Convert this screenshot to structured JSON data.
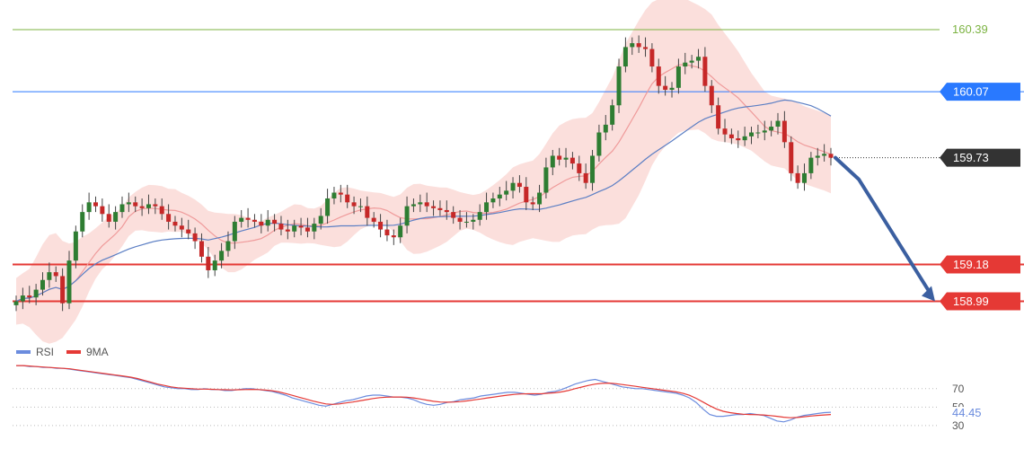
{
  "chart_data": [
    {
      "type": "candlestick",
      "y_range": [
        158.9,
        160.45
      ],
      "levels": [
        {
          "value": 160.39,
          "label": "160.39",
          "style": "text-only",
          "color": "#7cb342"
        },
        {
          "value": 160.07,
          "label": "160.07",
          "style": "tag",
          "color": "#2979ff"
        },
        {
          "value": 159.73,
          "label": "159.73",
          "style": "tag-dark",
          "color": "#333333"
        },
        {
          "value": 159.18,
          "label": "159.18",
          "style": "tag",
          "color": "#e53935"
        },
        {
          "value": 158.99,
          "label": "158.99",
          "style": "tag",
          "color": "#e53935"
        }
      ],
      "closes": [
        158.99,
        159.02,
        159.01,
        159.05,
        159.1,
        159.14,
        159.12,
        158.98,
        159.2,
        159.35,
        159.45,
        159.5,
        159.48,
        159.44,
        159.4,
        159.45,
        159.49,
        159.5,
        159.48,
        159.47,
        159.49,
        159.48,
        159.44,
        159.4,
        159.38,
        159.36,
        159.34,
        159.3,
        159.22,
        159.15,
        159.2,
        159.25,
        159.3,
        159.4,
        159.42,
        159.41,
        159.4,
        159.38,
        159.41,
        159.39,
        159.36,
        159.35,
        159.38,
        159.37,
        159.35,
        159.39,
        159.43,
        159.52,
        159.55,
        159.54,
        159.5,
        159.48,
        159.48,
        159.42,
        159.4,
        159.36,
        159.33,
        159.32,
        159.38,
        159.48,
        159.49,
        159.5,
        159.48,
        159.47,
        159.46,
        159.45,
        159.42,
        159.4,
        159.4,
        159.41,
        159.45,
        159.5,
        159.52,
        159.54,
        159.56,
        159.6,
        159.58,
        159.5,
        159.49,
        159.55,
        159.68,
        159.74,
        159.72,
        159.73,
        159.7,
        159.65,
        159.6,
        159.74,
        159.86,
        159.9,
        160.0,
        160.2,
        160.3,
        160.32,
        160.3,
        160.29,
        160.2,
        160.1,
        160.08,
        160.09,
        160.2,
        160.22,
        160.23,
        160.25,
        160.1,
        160.0,
        159.88,
        159.85,
        159.83,
        159.82,
        159.84,
        159.86,
        159.86,
        159.87,
        159.89,
        159.92,
        159.81,
        159.65,
        159.6,
        159.65,
        159.73,
        159.74,
        159.75,
        159.73
      ],
      "candle_x_range": [
        18,
        925
      ],
      "bollinger_half_width": [
        0.12,
        0.13,
        0.15,
        0.2,
        0.25,
        0.28,
        0.28,
        0.25,
        0.22,
        0.2,
        0.18,
        0.15,
        0.13,
        0.12,
        0.12,
        0.11,
        0.1,
        0.1,
        0.1,
        0.11,
        0.12,
        0.12,
        0.12,
        0.11,
        0.11,
        0.1,
        0.1,
        0.1,
        0.1,
        0.1,
        0.12,
        0.14,
        0.15,
        0.15,
        0.14,
        0.12,
        0.1,
        0.09,
        0.09,
        0.08,
        0.08,
        0.09,
        0.1,
        0.1,
        0.09,
        0.09,
        0.1,
        0.12,
        0.14,
        0.15,
        0.14,
        0.12,
        0.1,
        0.09,
        0.08,
        0.08,
        0.08,
        0.09,
        0.12,
        0.16,
        0.18,
        0.18,
        0.17,
        0.16,
        0.15,
        0.14,
        0.12,
        0.1,
        0.09,
        0.09,
        0.1,
        0.12,
        0.14,
        0.16,
        0.18,
        0.2,
        0.2,
        0.2,
        0.2,
        0.22,
        0.25,
        0.28,
        0.3,
        0.3,
        0.3,
        0.3,
        0.3,
        0.3,
        0.32,
        0.35,
        0.38,
        0.42,
        0.45,
        0.45,
        0.45,
        0.44,
        0.42,
        0.4,
        0.38,
        0.36,
        0.35,
        0.34,
        0.33,
        0.32,
        0.32,
        0.32,
        0.3,
        0.28,
        0.26,
        0.24,
        0.22,
        0.2,
        0.19,
        0.18,
        0.18,
        0.18,
        0.18,
        0.19,
        0.2,
        0.2,
        0.2,
        0.2,
        0.2,
        0.2
      ],
      "arrow": {
        "from_value": 159.73,
        "to_value": 158.99,
        "color": "#3b5fa0"
      }
    },
    {
      "type": "line",
      "legend": [
        {
          "name": "RSI",
          "color": "#6b8cde"
        },
        {
          "name": "9MA",
          "color": "#e53935"
        }
      ],
      "y_ticks": [
        {
          "value": 70,
          "label": "70"
        },
        {
          "value": 50,
          "label": "50"
        },
        {
          "value": 30,
          "label": "30"
        }
      ],
      "last_value_label": "44.45",
      "y_range": [
        26,
        100
      ],
      "rsi": [
        95,
        95,
        94,
        94,
        93,
        93,
        92,
        92,
        91,
        90,
        89,
        88,
        87,
        86,
        85,
        84,
        83,
        82,
        80,
        78,
        76,
        74,
        72,
        71,
        70,
        70,
        69,
        69,
        70,
        69,
        69,
        68,
        68,
        69,
        70,
        70,
        69,
        68,
        67,
        65,
        63,
        60,
        58,
        56,
        54,
        52,
        51,
        53,
        55,
        57,
        58,
        60,
        62,
        63,
        63,
        62,
        61,
        61,
        60,
        58,
        55,
        53,
        52,
        53,
        55,
        56,
        58,
        59,
        60,
        62,
        63,
        64,
        65,
        66,
        66,
        65,
        64,
        63,
        64,
        66,
        67,
        69,
        72,
        75,
        77,
        79,
        80,
        78,
        76,
        74,
        72,
        71,
        70,
        70,
        69,
        68,
        67,
        66,
        65,
        63,
        60,
        55,
        48,
        42,
        40,
        40,
        41,
        42,
        42,
        43,
        42,
        41,
        38,
        35,
        34,
        36,
        39,
        41,
        42,
        43,
        44,
        44.45
      ],
      "ma9": [
        95,
        95,
        94.5,
        94,
        93.5,
        93,
        92.5,
        92,
        91.5,
        90.5,
        89.5,
        88.5,
        87.5,
        86.5,
        85.5,
        84.5,
        83.5,
        82.5,
        81,
        79,
        77,
        75,
        73.5,
        72,
        71,
        70.5,
        70,
        69.5,
        69.5,
        69.3,
        69,
        68.8,
        68.6,
        68.8,
        69,
        69.2,
        69,
        68.5,
        67.8,
        66.5,
        64.8,
        62.8,
        60.8,
        58.8,
        56.8,
        55,
        53.5,
        53,
        53.5,
        54.5,
        55.5,
        56.8,
        58,
        59.3,
        60.3,
        60.8,
        61,
        61,
        60.8,
        60,
        58.8,
        57.5,
        56.3,
        55.5,
        55.3,
        55.5,
        56,
        56.8,
        57.8,
        58.8,
        60,
        61,
        62,
        63,
        63.8,
        64.3,
        64.5,
        64.5,
        64.5,
        65,
        65.5,
        66.5,
        68,
        70,
        71.8,
        73.5,
        75,
        75.8,
        76,
        75.5,
        74.5,
        73.5,
        72.5,
        71.5,
        70.5,
        69.5,
        68.5,
        67.5,
        66.5,
        65,
        62.8,
        59.5,
        55.5,
        51.5,
        48,
        45.5,
        44,
        43,
        42.3,
        42,
        41.8,
        41.5,
        40.8,
        40,
        39,
        38.5,
        38.8,
        39.5,
        40.3,
        41,
        41.5,
        42
      ]
    }
  ]
}
